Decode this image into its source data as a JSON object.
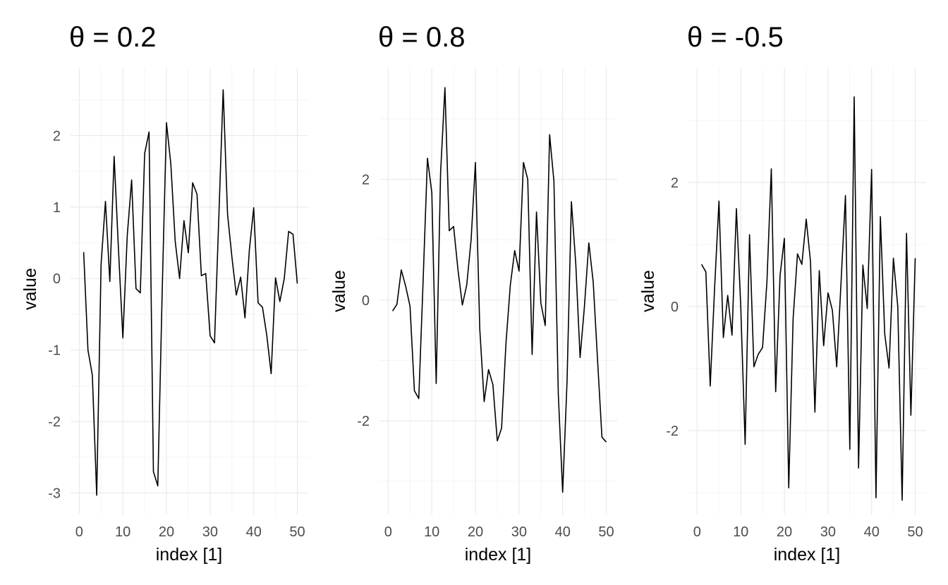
{
  "chart_data": [
    {
      "type": "line",
      "title": "θ = 0.2",
      "xlabel": "index [1]",
      "ylabel": "value",
      "xlim": [
        -2,
        52.5
      ],
      "ylim": [
        -3.3,
        2.95
      ],
      "xticks": [
        0,
        10,
        20,
        30,
        40,
        50
      ],
      "xtick_labels": [
        "0",
        "10",
        "20",
        "30",
        "40",
        "50"
      ],
      "yticks": [
        -3,
        -2,
        -1,
        0,
        1,
        2
      ],
      "ytick_labels": [
        "-3",
        "-2",
        "-1",
        "0",
        "1",
        "2"
      ],
      "grid": true,
      "x": [
        1,
        2,
        3,
        4,
        5,
        6,
        7,
        8,
        9,
        10,
        11,
        12,
        13,
        14,
        15,
        16,
        17,
        18,
        19,
        20,
        21,
        22,
        23,
        24,
        25,
        26,
        27,
        28,
        29,
        30,
        31,
        32,
        33,
        34,
        35,
        36,
        37,
        38,
        39,
        40,
        41,
        42,
        43,
        44,
        45,
        46,
        47,
        48,
        49,
        50
      ],
      "values": [
        0.37,
        -1.0,
        -1.35,
        -3.03,
        0.2,
        1.08,
        -0.04,
        1.71,
        0.4,
        -0.83,
        0.6,
        1.38,
        -0.14,
        -0.2,
        1.75,
        2.05,
        -2.7,
        -2.9,
        -0.2,
        2.18,
        1.6,
        0.52,
        0.0,
        0.81,
        0.36,
        1.34,
        1.18,
        0.04,
        0.07,
        -0.8,
        -0.9,
        0.85,
        2.64,
        0.9,
        0.3,
        -0.23,
        0.02,
        -0.55,
        0.4,
        0.99,
        -0.34,
        -0.4,
        -0.8,
        -1.33,
        0.01,
        -0.32,
        0.0,
        0.66,
        0.62,
        -0.07
      ]
    },
    {
      "type": "line",
      "title": "θ = 0.8",
      "xlabel": "index [1]",
      "ylabel": "value",
      "xlim": [
        -2,
        52.5
      ],
      "ylim": [
        -3.55,
        3.85
      ],
      "xticks": [
        0,
        10,
        20,
        30,
        40,
        50
      ],
      "xtick_labels": [
        "0",
        "10",
        "20",
        "30",
        "40",
        "50"
      ],
      "yticks": [
        -2,
        0,
        2
      ],
      "ytick_labels": [
        "-2",
        "0",
        "2"
      ],
      "grid": true,
      "x": [
        1,
        2,
        3,
        4,
        5,
        6,
        7,
        8,
        9,
        10,
        11,
        12,
        13,
        14,
        15,
        16,
        17,
        18,
        19,
        20,
        21,
        22,
        23,
        24,
        25,
        26,
        27,
        28,
        29,
        30,
        31,
        32,
        33,
        34,
        35,
        36,
        37,
        38,
        39,
        40,
        41,
        42,
        43,
        44,
        45,
        46,
        47,
        48,
        49,
        50
      ],
      "values": [
        -0.18,
        -0.07,
        0.5,
        0.23,
        -0.1,
        -1.5,
        -1.63,
        0.3,
        2.35,
        1.78,
        -1.38,
        2.1,
        3.52,
        1.15,
        1.22,
        0.5,
        -0.08,
        0.25,
        1.0,
        2.28,
        -0.48,
        -1.68,
        -1.15,
        -1.4,
        -2.33,
        -2.12,
        -0.72,
        0.25,
        0.82,
        0.48,
        2.28,
        2.0,
        -0.9,
        1.46,
        -0.05,
        -0.42,
        2.74,
        1.97,
        -1.55,
        -3.18,
        -1.35,
        1.63,
        0.6,
        -0.95,
        -0.1,
        0.95,
        0.3,
        -1.0,
        -2.27,
        -2.35
      ]
    },
    {
      "type": "line",
      "title": "θ = -0.5",
      "xlabel": "index [1]",
      "ylabel": "value",
      "xlim": [
        -2,
        52.5
      ],
      "ylim": [
        -3.35,
        3.85
      ],
      "xticks": [
        0,
        10,
        20,
        30,
        40,
        50
      ],
      "xtick_labels": [
        "0",
        "10",
        "20",
        "30",
        "40",
        "50"
      ],
      "yticks": [
        -2,
        0,
        2
      ],
      "ytick_labels": [
        "-2",
        "0",
        "2"
      ],
      "grid": true,
      "x": [
        1,
        2,
        3,
        4,
        5,
        6,
        7,
        8,
        9,
        10,
        11,
        12,
        13,
        14,
        15,
        16,
        17,
        18,
        19,
        20,
        21,
        22,
        23,
        24,
        25,
        26,
        27,
        28,
        29,
        30,
        31,
        32,
        33,
        34,
        35,
        36,
        37,
        38,
        39,
        40,
        41,
        42,
        43,
        44,
        45,
        46,
        47,
        48,
        49,
        50
      ],
      "values": [
        0.68,
        0.56,
        -1.28,
        0.3,
        1.7,
        -0.5,
        0.18,
        -0.46,
        1.58,
        0.0,
        -2.22,
        1.16,
        -0.97,
        -0.77,
        -0.66,
        0.4,
        2.22,
        -1.37,
        0.5,
        1.1,
        -2.92,
        -0.2,
        0.85,
        0.68,
        1.41,
        0.72,
        -1.7,
        0.58,
        -0.63,
        0.22,
        -0.06,
        -0.97,
        0.4,
        1.79,
        -2.3,
        3.38,
        -2.6,
        0.67,
        -0.03,
        2.21,
        -3.08,
        1.45,
        -0.44,
        -0.99,
        0.78,
        0.0,
        -3.12,
        1.18,
        -1.75,
        0.78
      ]
    }
  ]
}
